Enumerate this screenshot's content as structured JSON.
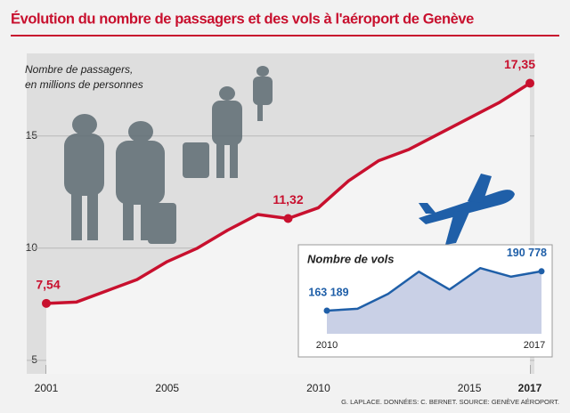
{
  "chart_data": [
    {
      "type": "line",
      "title": "Évolution du nombre de passagers et des vols à l'aéroport de Genève",
      "y_label": [
        "Nombre de passagers,",
        "en millions de personnes"
      ],
      "source": "G. LAPLACE. DONNÉES: C. BERNET. SOURCE: GENÈVE AÉROPORT.",
      "x": [
        2001,
        2002,
        2003,
        2004,
        2005,
        2006,
        2007,
        2008,
        2009,
        2010,
        2011,
        2012,
        2013,
        2014,
        2015,
        2016,
        2017
      ],
      "series": [
        {
          "color": "#c8102e",
          "values": [
            7.54,
            7.6,
            8.1,
            8.6,
            9.4,
            10.0,
            10.8,
            11.5,
            11.32,
            11.8,
            13.0,
            13.9,
            14.4,
            15.1,
            15.8,
            16.5,
            17.35
          ],
          "value_labels": [
            "7,54",
            null,
            null,
            null,
            null,
            null,
            null,
            null,
            "11,32",
            null,
            null,
            null,
            null,
            null,
            null,
            null,
            "17,35"
          ]
        }
      ],
      "xlim": [
        2001,
        2017
      ],
      "xticks": [
        2001,
        2005,
        2010,
        2015,
        2017
      ],
      "ylim": [
        4.4,
        18.4
      ],
      "yticks": [
        5,
        10,
        15
      ],
      "grid": true
    },
    {
      "type": "area",
      "title": "Nombre de vols",
      "x": [
        2010,
        2011,
        2012,
        2013,
        2014,
        2015,
        2016,
        2017
      ],
      "series": [
        {
          "color": "#1f5fa8",
          "fill": "#c9d0e6",
          "values": [
            163189,
            164500,
            175000,
            190500,
            178000,
            193000,
            187000,
            190778
          ],
          "value_labels": [
            "163 189",
            null,
            null,
            null,
            null,
            null,
            null,
            "190 778"
          ]
        }
      ],
      "xlim": [
        2010,
        2017
      ],
      "xticks": [
        2010,
        2017
      ],
      "ylim": [
        147000,
        200000
      ],
      "grid": false
    }
  ]
}
